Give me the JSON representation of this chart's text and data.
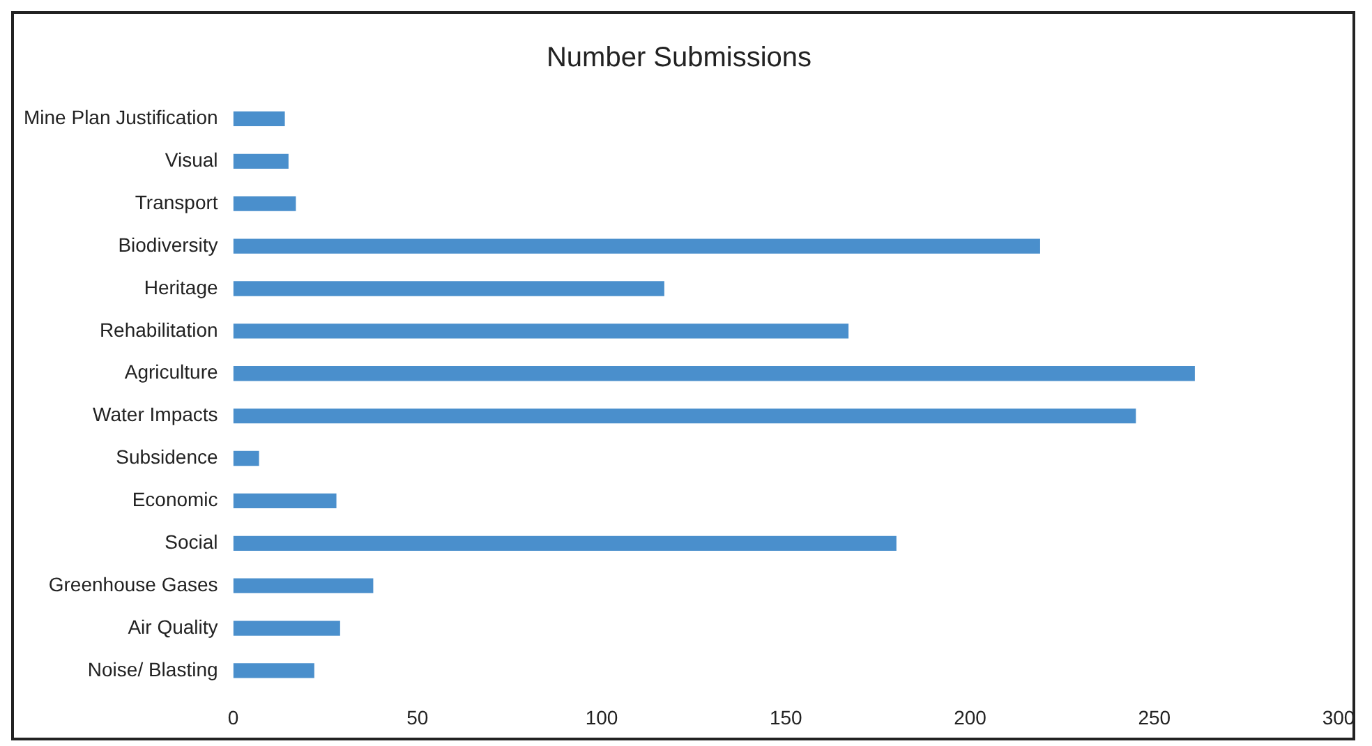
{
  "chart_data": {
    "type": "bar",
    "orientation": "horizontal",
    "title": "Number Submissions",
    "categories": [
      "Mine Plan Justification",
      "Visual",
      "Transport",
      "Biodiversity",
      "Heritage",
      "Rehabilitation",
      "Agriculture",
      "Water Impacts",
      "Subsidence",
      "Economic",
      "Social",
      "Greenhouse Gases",
      "Air Quality",
      "Noise/ Blasting"
    ],
    "values": [
      14,
      15,
      17,
      219,
      117,
      167,
      261,
      245,
      7,
      28,
      180,
      38,
      29,
      22
    ],
    "color": "#4a8fcc",
    "xlim": [
      0,
      300
    ],
    "xticks": [
      0,
      50,
      100,
      150,
      200,
      250,
      300
    ],
    "grid": false,
    "legend": false
  }
}
